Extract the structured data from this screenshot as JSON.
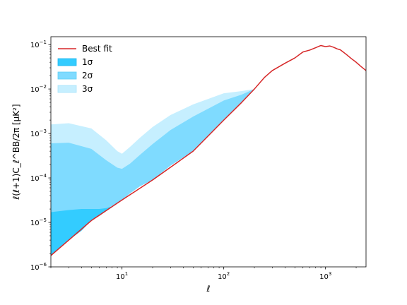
{
  "chart_data": {
    "type": "area",
    "xscale": "log",
    "yscale": "log",
    "xlim": [
      2,
      2500
    ],
    "ylim": [
      1e-06,
      0.15
    ],
    "xlabel": "ℓ",
    "ylabel": "ℓ(ℓ+1)C_ℓ^BB/2π [μK²]",
    "grid": false,
    "legend_position": "upper-left",
    "x_ticks": [
      {
        "value": 10,
        "base": "10",
        "exp": "1"
      },
      {
        "value": 100,
        "base": "10",
        "exp": "2"
      },
      {
        "value": 1000,
        "base": "10",
        "exp": "3"
      }
    ],
    "y_ticks": [
      {
        "value": 1e-06,
        "base": "10",
        "exp": "−6"
      },
      {
        "value": 1e-05,
        "base": "10",
        "exp": "−5"
      },
      {
        "value": 0.0001,
        "base": "10",
        "exp": "−4"
      },
      {
        "value": 0.001,
        "base": "10",
        "exp": "−3"
      },
      {
        "value": 0.01,
        "base": "10",
        "exp": "−2"
      },
      {
        "value": 0.1,
        "base": "10",
        "exp": "−1"
      }
    ],
    "legend": [
      {
        "name": "Best fit",
        "kind": "line",
        "color": "#d62728"
      },
      {
        "name": "1σ",
        "kind": "band",
        "color": "#33ccff",
        "stroke": "#1fb6ee"
      },
      {
        "name": "2σ",
        "kind": "band",
        "color": "#7fdbff",
        "stroke": "#5ecff5"
      },
      {
        "name": "3σ",
        "kind": "band",
        "color": "#c6efff",
        "stroke": "#a8e4fa"
      }
    ],
    "best_fit": {
      "x": [
        2,
        3,
        5,
        10,
        20,
        50,
        100,
        150,
        200,
        250,
        300,
        400,
        500,
        600,
        700,
        800,
        900,
        1000,
        1100,
        1200,
        1300,
        1400,
        1600,
        1800,
        2000,
        2200,
        2500
      ],
      "y": [
        1.8e-06,
        4e-06,
        1.1e-05,
        3.2e-05,
        9e-05,
        0.0004,
        0.002,
        0.005,
        0.01,
        0.018,
        0.026,
        0.038,
        0.05,
        0.068,
        0.075,
        0.085,
        0.095,
        0.09,
        0.093,
        0.087,
        0.08,
        0.076,
        0.06,
        0.048,
        0.04,
        0.033,
        0.026
      ]
    },
    "bands": [
      {
        "name": "3σ",
        "x": [
          2,
          3,
          5,
          7,
          9,
          10,
          12,
          15,
          20,
          30,
          50,
          100,
          150,
          200
        ],
        "upper": [
          0.0016,
          0.0017,
          0.0013,
          0.0007,
          0.0004,
          0.00035,
          0.0005,
          0.0008,
          0.0014,
          0.0026,
          0.0045,
          0.008,
          0.009,
          0.01
        ],
        "lower": [
          1.8e-06,
          4e-06,
          1.1e-05,
          2e-05,
          2.7e-05,
          3.2e-05,
          4.5e-05,
          6.5e-05,
          9e-05,
          0.00019,
          0.0004,
          0.002,
          0.005,
          0.01
        ]
      },
      {
        "name": "2σ",
        "x": [
          2,
          3,
          5,
          7,
          9,
          10,
          12,
          15,
          20,
          30,
          50,
          100,
          150,
          200
        ],
        "upper": [
          0.0006,
          0.00062,
          0.00045,
          0.00025,
          0.00017,
          0.00016,
          0.00021,
          0.00033,
          0.00058,
          0.0012,
          0.0024,
          0.0055,
          0.0075,
          0.01
        ],
        "lower": [
          1.8e-06,
          4e-06,
          1.1e-05,
          2e-05,
          2.7e-05,
          3.2e-05,
          4.5e-05,
          6.5e-05,
          9e-05,
          0.00019,
          0.0004,
          0.002,
          0.005,
          0.01
        ]
      },
      {
        "name": "1σ",
        "x": [
          2,
          3,
          4,
          5,
          6,
          7,
          8,
          10,
          12,
          15,
          20,
          30,
          50,
          100,
          150,
          200
        ],
        "upper": [
          1.7e-05,
          1.9e-05,
          2e-05,
          2e-05,
          2e-05,
          2.1e-05,
          2.3e-05,
          3.2e-05,
          4.5e-05,
          6.5e-05,
          9e-05,
          0.00019,
          0.0004,
          0.002,
          0.005,
          0.01
        ],
        "lower": [
          1.8e-06,
          4e-06,
          6.5e-06,
          1.1e-05,
          1.4e-05,
          1.8e-05,
          2.2e-05,
          3.2e-05,
          4.5e-05,
          6.5e-05,
          9e-05,
          0.00019,
          0.0004,
          0.002,
          0.005,
          0.01
        ]
      }
    ]
  }
}
